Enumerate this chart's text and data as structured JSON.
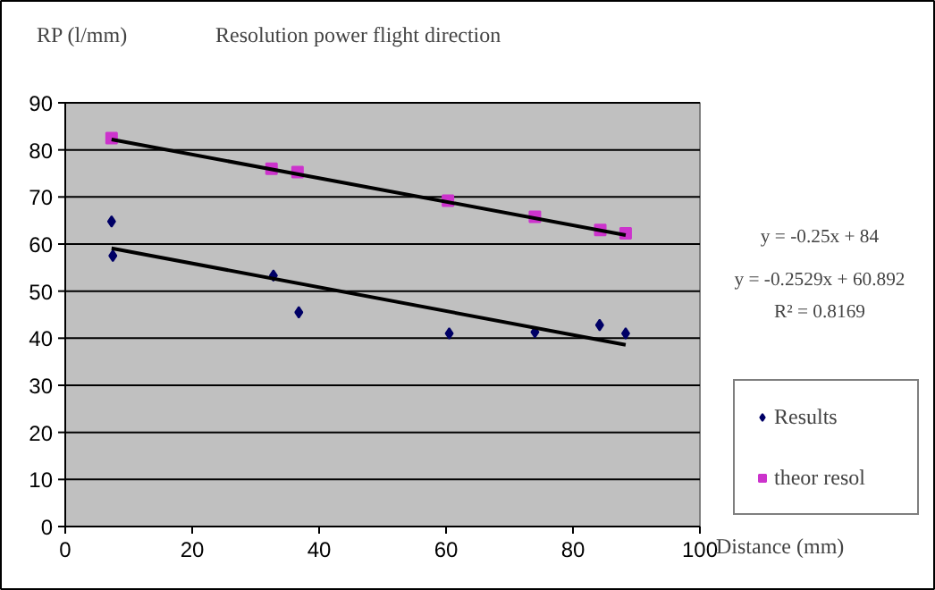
{
  "chart_data": {
    "type": "scatter",
    "title": "Resolution power flight direction",
    "ylabel": "RP (l/mm)",
    "xlabel": "Distance (mm)",
    "xlim": [
      0,
      100
    ],
    "xticks": [
      0,
      20,
      40,
      60,
      80,
      100
    ],
    "ylim": [
      0,
      90
    ],
    "yticks": [
      0,
      10,
      20,
      30,
      40,
      50,
      60,
      70,
      80,
      90
    ],
    "grid": "y",
    "legend": "right",
    "series": [
      {
        "name": "Results",
        "color": "#000066",
        "marker": "diamond",
        "x": [
          7.3,
          7.5,
          32.8,
          36.8,
          60.5,
          74,
          84.2,
          88.3
        ],
        "values": [
          64.8,
          57.5,
          53.3,
          45.5,
          41,
          41.3,
          42.8,
          41
        ]
      },
      {
        "name": "theor resol",
        "color": "#cc33cc",
        "marker": "square",
        "x": [
          7.3,
          32.5,
          36.6,
          60.3,
          74,
          84.3,
          88.3
        ],
        "values": [
          82.5,
          76,
          75.3,
          69.2,
          65.8,
          63,
          62.3
        ]
      },
      {
        "type": "line",
        "color": "#000000",
        "x": [
          7.3,
          88.3
        ],
        "values": [
          82.2,
          61.9
        ]
      },
      {
        "type": "line",
        "color": "#000000",
        "x": [
          7.3,
          88.3
        ],
        "values": [
          59.1,
          38.6
        ]
      }
    ],
    "annotations": [
      "y = -0.25x + 84",
      "y = -0.2529x + 60.892",
      "R² = 0.8169"
    ]
  }
}
